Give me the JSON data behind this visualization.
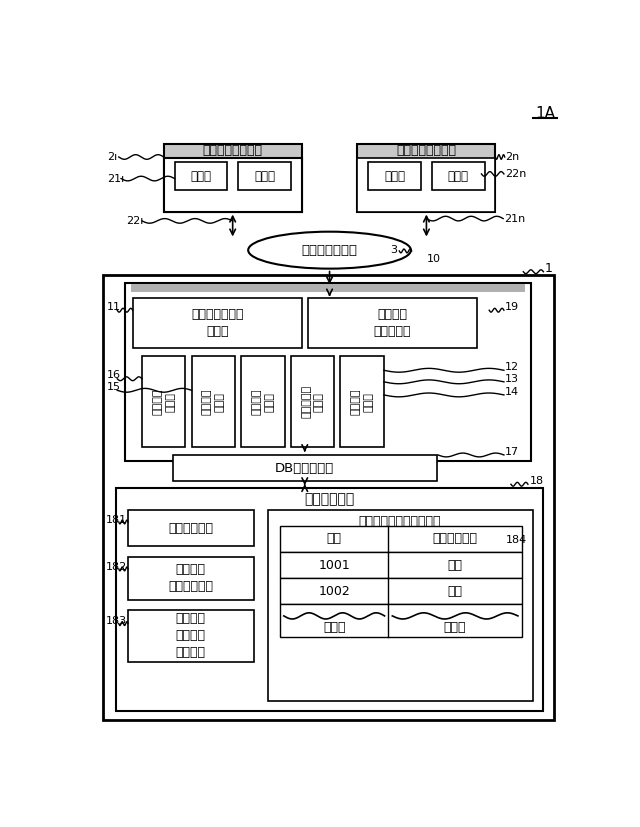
{
  "bg_color": "#ffffff",
  "lc": "#000000",
  "fig_label": "1A",
  "client1_label": "クライアント端末",
  "client2_label": "クライアント端末",
  "op_label": "操作部",
  "disp_label": "表示部",
  "internet_label": "インターネット",
  "front_label": "フロントページ\n配信部",
  "price_label": "価格情報\n受信管理部",
  "order_recv_label": "注文入力\n受付部",
  "deposit_label": "入出金情報\n生成部",
  "contract_label": "約定情報\n生成部",
  "account_label": "口座情報\n生成部",
  "order_gen_label": "注文情報\n生成部",
  "db_conn_label": "DB接続基底部",
  "database_label": "データベース",
  "order_table_label": "注文テーブル",
  "customer_label": "顧客口座\n情報テーブル",
  "currency_label": "通貨ペア\n注文条件\nテーブル",
  "seq_table_label": "シーケンス番号テーブル",
  "num_label": "番号",
  "usage_label": "使用／未使用",
  "r1_num": "1001",
  "r1_use": "使用",
  "r2_num": "1002",
  "r2_use": "使用",
  "dots": "・・・"
}
